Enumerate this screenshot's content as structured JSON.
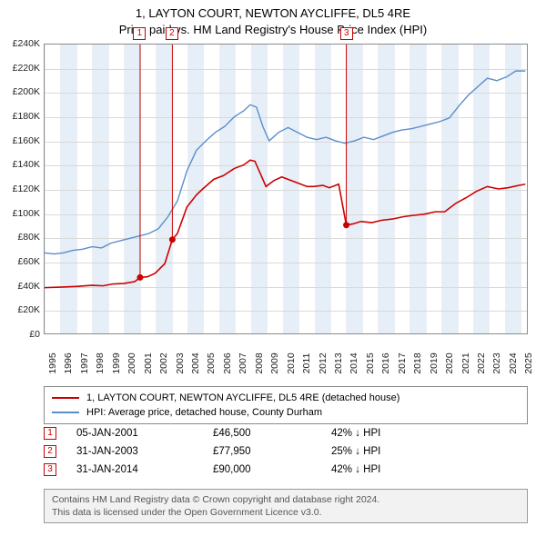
{
  "title": {
    "line1": "1, LAYTON COURT, NEWTON AYCLIFFE, DL5 4RE",
    "line2": "Price paid vs. HM Land Registry's House Price Index (HPI)"
  },
  "chart": {
    "type": "line",
    "x_start": 1995.0,
    "x_end": 2025.5,
    "x_ticks": [
      1995,
      1996,
      1997,
      1998,
      1999,
      2000,
      2001,
      2002,
      2003,
      2004,
      2005,
      2006,
      2007,
      2008,
      2009,
      2010,
      2011,
      2012,
      2013,
      2014,
      2015,
      2016,
      2017,
      2018,
      2019,
      2020,
      2021,
      2022,
      2023,
      2024,
      2025
    ],
    "y_min": 0,
    "y_max": 240000,
    "y_step": 20000,
    "y_prefix": "£",
    "y_suffix": "K",
    "y_divisor": 1000,
    "background_color": "#ffffff",
    "grid_color": "#d9d9d9",
    "border_color": "#8a8a8a",
    "shade_color": "#e6eef7",
    "series": {
      "property": {
        "name": "1, LAYTON COURT, NEWTON AYCLIFFE, DL5 4RE (detached house)",
        "color": "#cc0000",
        "stroke_width": 1.6,
        "points": [
          [
            1995.0,
            38000
          ],
          [
            1996.0,
            38500
          ],
          [
            1997.0,
            39000
          ],
          [
            1998.0,
            40000
          ],
          [
            1998.7,
            39500
          ],
          [
            1999.3,
            41000
          ],
          [
            2000.0,
            41500
          ],
          [
            2000.7,
            43000
          ],
          [
            2001.04,
            46500
          ],
          [
            2001.5,
            47000
          ],
          [
            2002.0,
            50000
          ],
          [
            2002.6,
            58000
          ],
          [
            2003.08,
            77950
          ],
          [
            2003.4,
            83000
          ],
          [
            2004.0,
            105000
          ],
          [
            2004.6,
            115000
          ],
          [
            2005.0,
            120000
          ],
          [
            2005.7,
            128000
          ],
          [
            2006.3,
            131000
          ],
          [
            2007.0,
            137000
          ],
          [
            2007.6,
            140000
          ],
          [
            2008.0,
            144000
          ],
          [
            2008.3,
            143000
          ],
          [
            2008.7,
            131000
          ],
          [
            2009.0,
            122000
          ],
          [
            2009.5,
            127000
          ],
          [
            2010.0,
            130000
          ],
          [
            2010.6,
            127000
          ],
          [
            2011.0,
            125000
          ],
          [
            2011.6,
            122000
          ],
          [
            2012.0,
            122000
          ],
          [
            2012.6,
            123000
          ],
          [
            2013.0,
            121000
          ],
          [
            2013.6,
            124000
          ],
          [
            2014.08,
            90000
          ],
          [
            2014.5,
            91000
          ],
          [
            2015.0,
            93000
          ],
          [
            2015.7,
            92000
          ],
          [
            2016.3,
            94000
          ],
          [
            2017.0,
            95000
          ],
          [
            2017.7,
            97000
          ],
          [
            2018.3,
            98000
          ],
          [
            2019.0,
            99000
          ],
          [
            2019.7,
            101000
          ],
          [
            2020.3,
            101000
          ],
          [
            2021.0,
            108000
          ],
          [
            2021.7,
            113000
          ],
          [
            2022.3,
            118000
          ],
          [
            2023.0,
            122000
          ],
          [
            2023.7,
            120000
          ],
          [
            2024.3,
            121000
          ],
          [
            2025.0,
            123000
          ],
          [
            2025.4,
            124000
          ]
        ]
      },
      "hpi": {
        "name": "HPI: Average price, detached house, County Durham",
        "color": "#5a8ecb",
        "stroke_width": 1.4,
        "points": [
          [
            1995.0,
            67000
          ],
          [
            1995.6,
            66000
          ],
          [
            1996.2,
            67000
          ],
          [
            1996.8,
            69000
          ],
          [
            1997.4,
            70000
          ],
          [
            1998.0,
            72000
          ],
          [
            1998.6,
            71000
          ],
          [
            1999.2,
            75000
          ],
          [
            1999.8,
            77000
          ],
          [
            2000.4,
            79000
          ],
          [
            2001.0,
            81000
          ],
          [
            2001.6,
            83000
          ],
          [
            2002.2,
            87000
          ],
          [
            2002.8,
            97000
          ],
          [
            2003.4,
            110000
          ],
          [
            2004.0,
            135000
          ],
          [
            2004.6,
            152000
          ],
          [
            2005.2,
            160000
          ],
          [
            2005.8,
            167000
          ],
          [
            2006.4,
            172000
          ],
          [
            2007.0,
            180000
          ],
          [
            2007.6,
            185000
          ],
          [
            2008.0,
            190000
          ],
          [
            2008.4,
            188000
          ],
          [
            2008.8,
            172000
          ],
          [
            2009.2,
            160000
          ],
          [
            2009.8,
            167000
          ],
          [
            2010.4,
            171000
          ],
          [
            2011.0,
            167000
          ],
          [
            2011.6,
            163000
          ],
          [
            2012.2,
            161000
          ],
          [
            2012.8,
            163000
          ],
          [
            2013.4,
            160000
          ],
          [
            2014.0,
            158000
          ],
          [
            2014.6,
            160000
          ],
          [
            2015.2,
            163000
          ],
          [
            2015.8,
            161000
          ],
          [
            2016.4,
            164000
          ],
          [
            2017.0,
            167000
          ],
          [
            2017.6,
            169000
          ],
          [
            2018.2,
            170000
          ],
          [
            2018.8,
            172000
          ],
          [
            2019.4,
            174000
          ],
          [
            2020.0,
            176000
          ],
          [
            2020.6,
            179000
          ],
          [
            2021.2,
            189000
          ],
          [
            2021.8,
            198000
          ],
          [
            2022.4,
            205000
          ],
          [
            2023.0,
            212000
          ],
          [
            2023.6,
            210000
          ],
          [
            2024.2,
            213000
          ],
          [
            2024.8,
            218000
          ],
          [
            2025.4,
            218000
          ]
        ]
      }
    },
    "events": [
      {
        "n": "1",
        "year": 2001.04,
        "price": 46500,
        "date": "05-JAN-2001",
        "price_str": "£46,500",
        "delta": "42% ↓ HPI"
      },
      {
        "n": "2",
        "year": 2003.08,
        "price": 77950,
        "date": "31-JAN-2003",
        "price_str": "£77,950",
        "delta": "25% ↓ HPI"
      },
      {
        "n": "3",
        "year": 2014.08,
        "price": 90000,
        "date": "31-JAN-2014",
        "price_str": "£90,000",
        "delta": "42% ↓ HPI"
      }
    ]
  },
  "footer": {
    "line1": "Contains HM Land Registry data © Crown copyright and database right 2024.",
    "line2": "This data is licensed under the Open Government Licence v3.0."
  }
}
